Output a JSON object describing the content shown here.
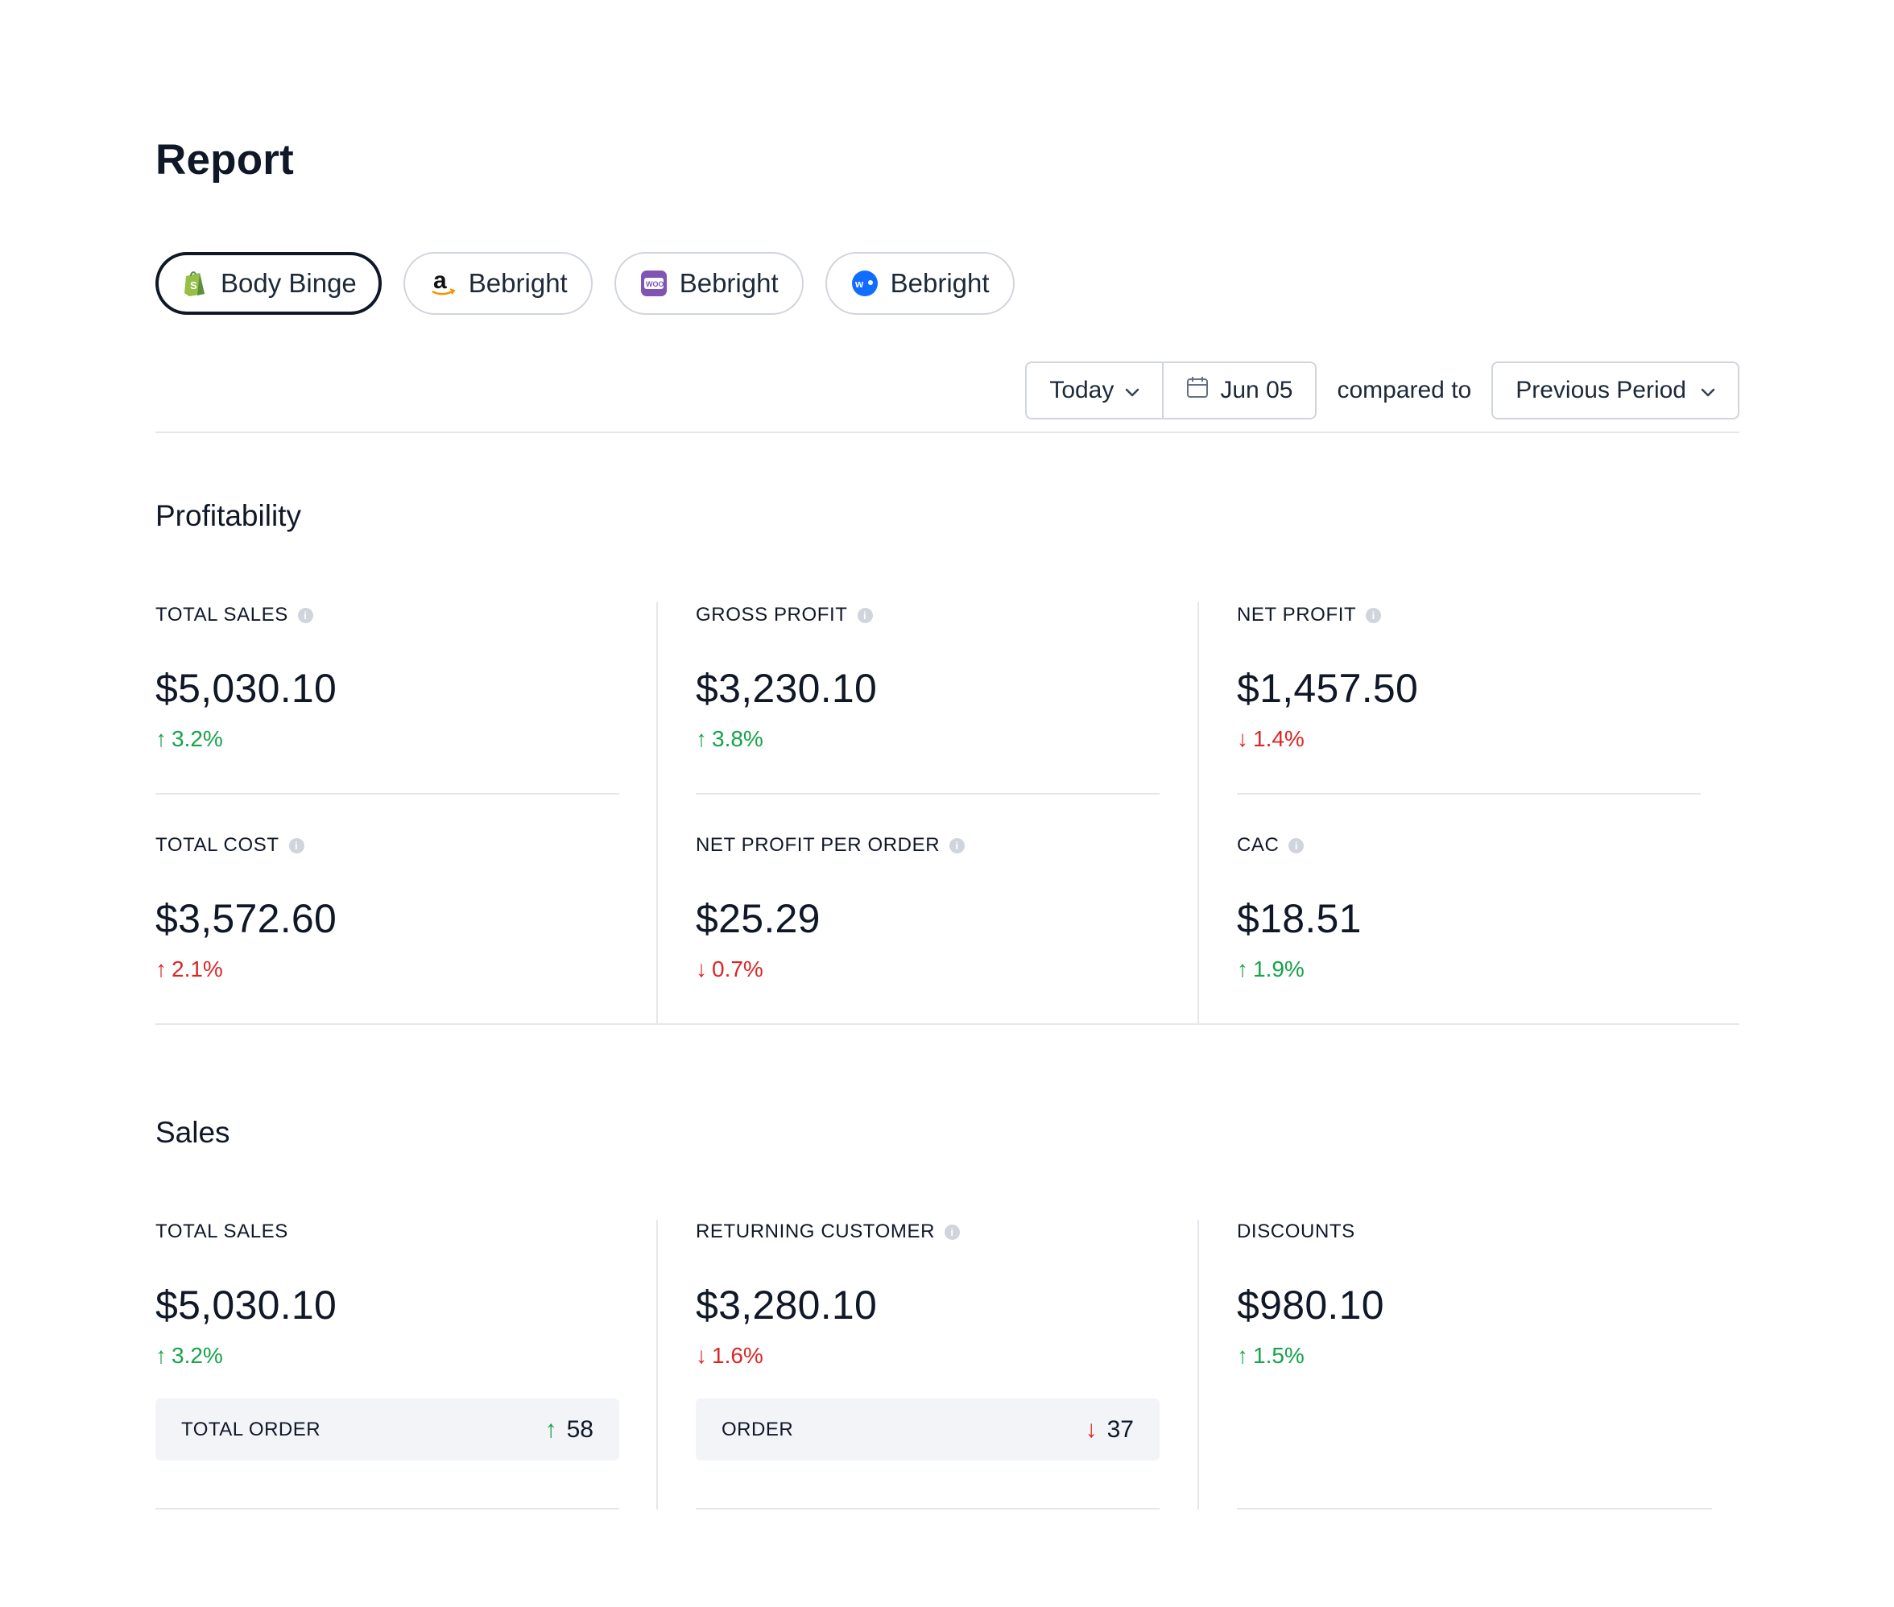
{
  "page": {
    "title": "Report"
  },
  "stores": [
    {
      "name": "Body Binge",
      "platform": "shopify-icon",
      "active": true
    },
    {
      "name": "Bebright",
      "platform": "amazon-icon",
      "active": false
    },
    {
      "name": "Bebright",
      "platform": "woocommerce-icon",
      "active": false
    },
    {
      "name": "Bebright",
      "platform": "wix-icon",
      "active": false
    }
  ],
  "filters": {
    "range": "Today",
    "date": "Jun 05",
    "compared_text": "compared to",
    "comparison": "Previous Period"
  },
  "profitability": {
    "title": "Profitability",
    "metrics": [
      {
        "label": "TOTAL SALES",
        "value": "$5,030.10",
        "delta": "3.2%",
        "direction": "up"
      },
      {
        "label": "GROSS PROFIT",
        "value": "$3,230.10",
        "delta": "3.8%",
        "direction": "up"
      },
      {
        "label": "NET PROFIT",
        "value": "$1,457.50",
        "delta": "1.4%",
        "direction": "down"
      },
      {
        "label": "TOTAL COST",
        "value": "$3,572.60",
        "delta": "2.1%",
        "direction": "up-bad"
      },
      {
        "label": "NET PROFIT PER ORDER",
        "value": "$25.29",
        "delta": "0.7%",
        "direction": "down"
      },
      {
        "label": "CAC",
        "value": "$18.51",
        "delta": "1.9%",
        "direction": "up"
      }
    ]
  },
  "sales": {
    "title": "Sales",
    "metrics": [
      {
        "label": "TOTAL SALES",
        "value": "$5,030.10",
        "delta": "3.2%",
        "direction": "up"
      },
      {
        "label": "RETURNING CUSTOMER",
        "value": "$3,280.10",
        "delta": "1.6%",
        "direction": "down"
      },
      {
        "label": "DISCOUNTS",
        "value": "$980.10",
        "delta": "1.5%",
        "direction": "up"
      }
    ],
    "sub": [
      {
        "label": "TOTAL ORDER",
        "value": "58",
        "direction": "up"
      },
      {
        "label": "ORDER",
        "value": "37",
        "direction": "down"
      }
    ]
  },
  "colors": {
    "up": "#16a34a",
    "down": "#dc2626",
    "border": "#d0d5dd",
    "divider": "#e4e7ec",
    "text": "#101828"
  }
}
